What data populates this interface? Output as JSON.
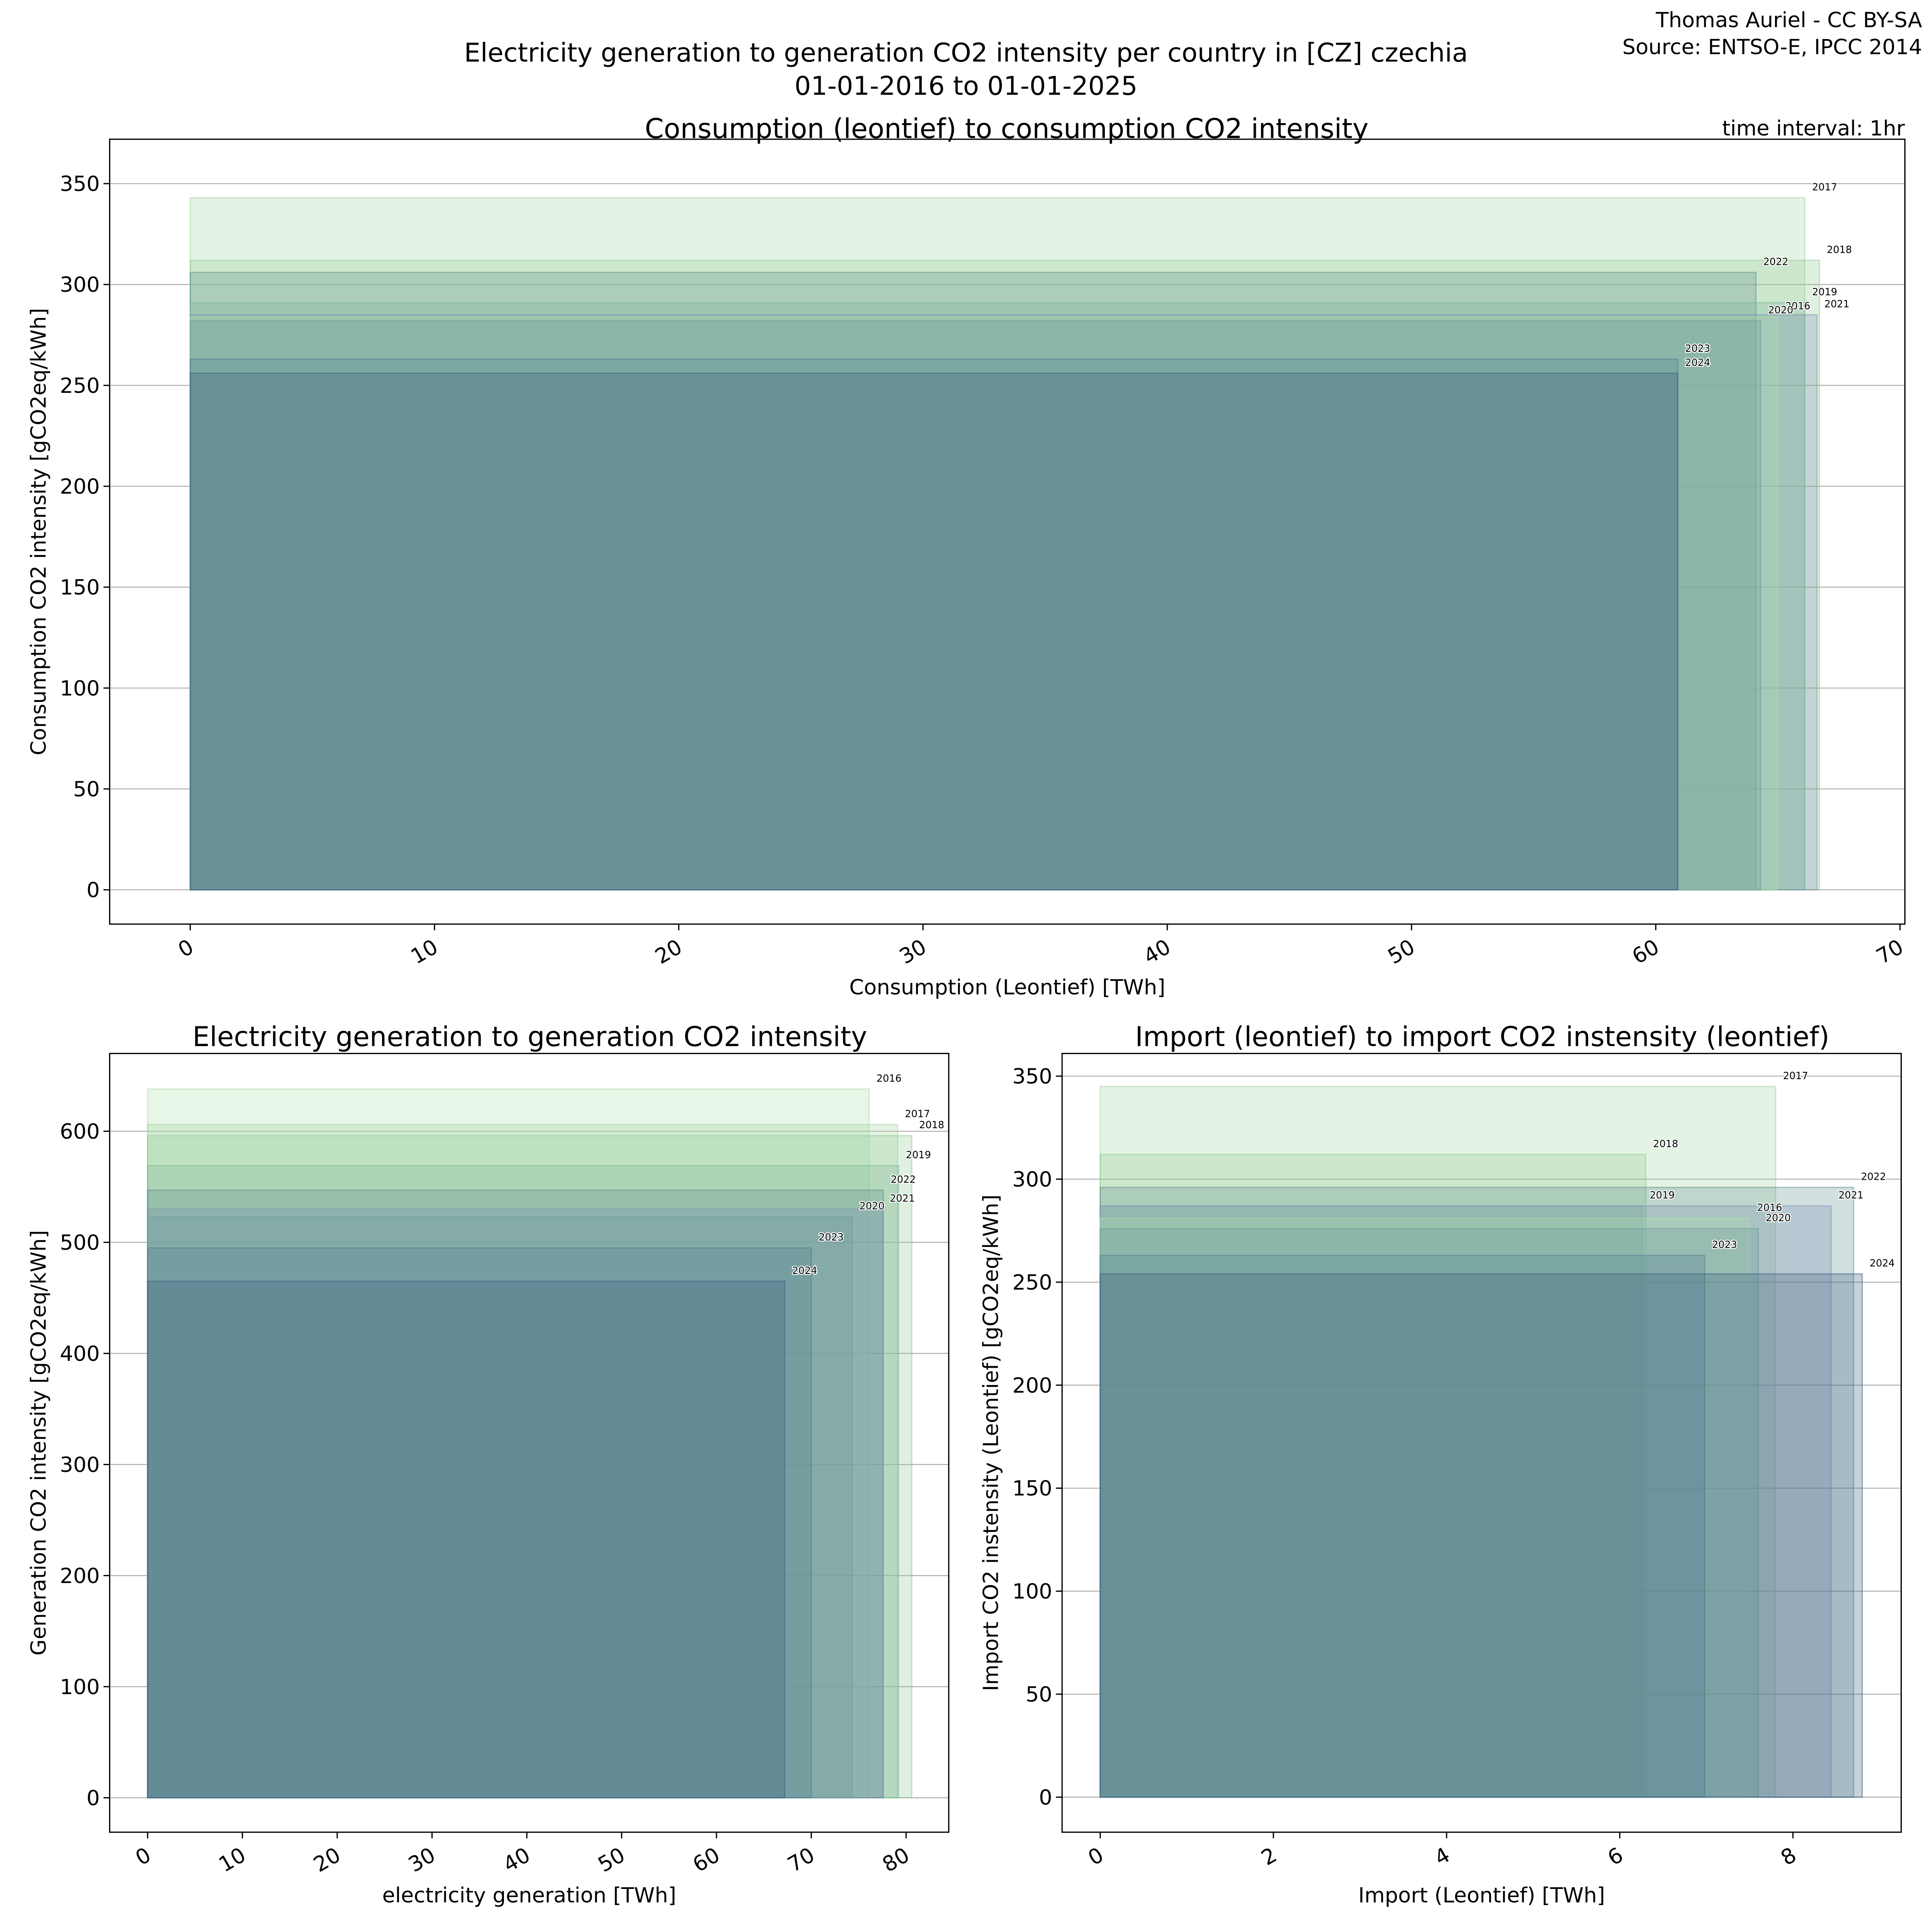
{
  "header": {
    "title_line1": "Electricity generation to generation CO2 intensity per country in [CZ] czechia",
    "title_line2": "01-01-2016 to 01-01-2025",
    "credit_line1": "Thomas Auriel - CC BY-SA",
    "credit_line2": "Source: ENTSO-E, IPCC 2014",
    "time_interval": "time interval: 1hr"
  },
  "colors": {
    "2016": "#a9dfa9",
    "2017": "#9fd49f",
    "2018": "#8cc98f",
    "2019": "#7fb59a",
    "2020": "#6b9c9c",
    "2021": "#7b8fb5",
    "2022": "#5f8c8c",
    "2023": "#4f7e8e",
    "2024": "#3a5f80"
  },
  "chart_data": [
    {
      "type": "bar",
      "id": "consumption",
      "title": "Consumption (leontief) to consumption CO2 intensity",
      "xlabel": "Consumption (Leontief) [TWh]",
      "ylabel": "Consumption CO2 intensity [gCO2eq/kWh]",
      "xlim": [
        -3.3,
        70.2
      ],
      "ylim": [
        -17,
        372
      ],
      "xticks": [
        "0",
        "10",
        "20",
        "30",
        "40",
        "50",
        "60",
        "70"
      ],
      "yticks": [
        "0",
        "50",
        "100",
        "150",
        "200",
        "250",
        "300",
        "350"
      ],
      "grid": true,
      "series": [
        {
          "name": "2016",
          "x": 65.0,
          "y": 284
        },
        {
          "name": "2017",
          "x": 66.1,
          "y": 343
        },
        {
          "name": "2018",
          "x": 66.7,
          "y": 312
        },
        {
          "name": "2019",
          "x": 66.1,
          "y": 291
        },
        {
          "name": "2020",
          "x": 64.3,
          "y": 282
        },
        {
          "name": "2021",
          "x": 66.6,
          "y": 285
        },
        {
          "name": "2022",
          "x": 64.1,
          "y": 306
        },
        {
          "name": "2023",
          "x": 60.9,
          "y": 263
        },
        {
          "name": "2024",
          "x": 60.9,
          "y": 256
        }
      ]
    },
    {
      "type": "bar",
      "id": "generation",
      "title": "Electricity generation to generation CO2 intensity",
      "xlabel": "electricity generation [TWh]",
      "ylabel": "Generation CO2 intensity [gCO2eq/kWh]",
      "xlim": [
        -4,
        84.5
      ],
      "ylim": [
        -31,
        670
      ],
      "xticks": [
        "0",
        "10",
        "20",
        "30",
        "40",
        "50",
        "60",
        "70",
        "80"
      ],
      "yticks": [
        "0",
        "100",
        "200",
        "300",
        "400",
        "500",
        "600"
      ],
      "grid": true,
      "series": [
        {
          "name": "2016",
          "x": 76.1,
          "y": 638
        },
        {
          "name": "2017",
          "x": 79.1,
          "y": 606
        },
        {
          "name": "2018",
          "x": 80.6,
          "y": 596
        },
        {
          "name": "2019",
          "x": 79.2,
          "y": 569
        },
        {
          "name": "2020",
          "x": 74.3,
          "y": 523
        },
        {
          "name": "2021",
          "x": 77.5,
          "y": 530
        },
        {
          "name": "2022",
          "x": 77.6,
          "y": 547
        },
        {
          "name": "2023",
          "x": 70.0,
          "y": 495
        },
        {
          "name": "2024",
          "x": 67.2,
          "y": 465
        }
      ]
    },
    {
      "type": "bar",
      "id": "import",
      "title": "Import (leontief) to import CO2 instensity (leontief)",
      "xlabel": "Import (Leontief) [TWh]",
      "ylabel": "Import CO2 instensity (Leontief) [gCO2eq/kWh]",
      "xlim": [
        -0.44,
        9.25
      ],
      "ylim": [
        -17,
        361
      ],
      "xticks": [
        "0",
        "2",
        "4",
        "6",
        "8"
      ],
      "yticks": [
        "0",
        "50",
        "100",
        "150",
        "200",
        "250",
        "300",
        "350"
      ],
      "grid": true,
      "series": [
        {
          "name": "2016",
          "x": 7.5,
          "y": 281
        },
        {
          "name": "2017",
          "x": 7.8,
          "y": 345
        },
        {
          "name": "2018",
          "x": 6.3,
          "y": 312
        },
        {
          "name": "2019",
          "x": 6.26,
          "y": 287
        },
        {
          "name": "2020",
          "x": 7.6,
          "y": 276
        },
        {
          "name": "2021",
          "x": 8.44,
          "y": 287
        },
        {
          "name": "2022",
          "x": 8.7,
          "y": 296
        },
        {
          "name": "2023",
          "x": 6.98,
          "y": 263
        },
        {
          "name": "2024",
          "x": 8.8,
          "y": 254
        }
      ]
    }
  ]
}
